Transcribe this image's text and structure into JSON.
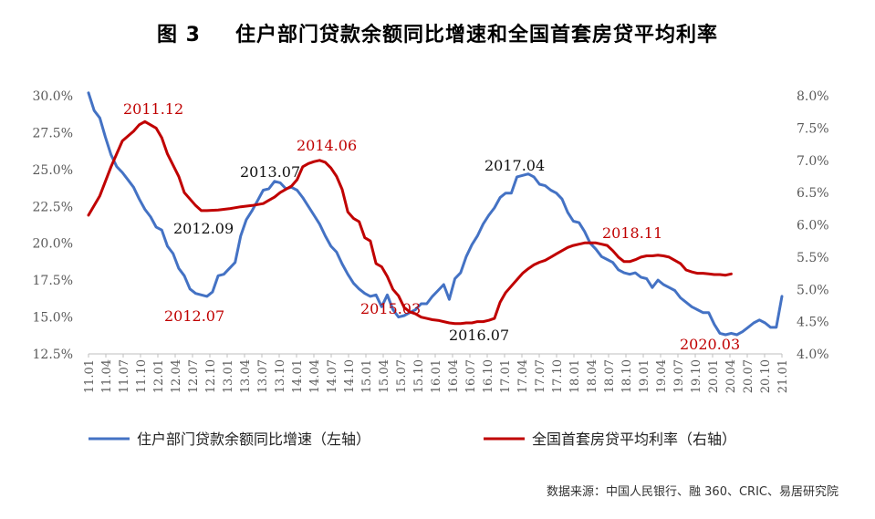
{
  "title": {
    "figure_no": "图 3",
    "text": "住户部门贷款余额同比增速和全国首套房贷平均利率"
  },
  "source": "数据来源：中国人民银行、融 360、CRIC、易居研究院",
  "chart_data": {
    "type": "line",
    "left_axis": {
      "range": [
        12.5,
        30.0
      ],
      "ticks": [
        "30.0%",
        "27.5%",
        "25.0%",
        "22.5%",
        "20.0%",
        "17.5%",
        "15.0%",
        "12.5%"
      ],
      "tick_values": [
        30.0,
        27.5,
        25.0,
        22.5,
        20.0,
        17.5,
        15.0,
        12.5
      ]
    },
    "right_axis": {
      "range": [
        4.0,
        8.0
      ],
      "ticks": [
        "8.0%",
        "7.5%",
        "7.0%",
        "6.5%",
        "6.0%",
        "5.5%",
        "5.0%",
        "4.5%",
        "4.0%"
      ],
      "tick_values": [
        8.0,
        7.5,
        7.0,
        6.5,
        6.0,
        5.5,
        5.0,
        4.5,
        4.0
      ]
    },
    "x_ticks": [
      "11.01",
      "11.04",
      "11.07",
      "11.10",
      "12.01",
      "12.04",
      "12.07",
      "12.10",
      "13.01",
      "13.04",
      "13.07",
      "13.10",
      "14.01",
      "14.04",
      "14.07",
      "14.10",
      "15.01",
      "15.04",
      "15.07",
      "15.10",
      "16.01",
      "16.04",
      "16.07",
      "16.10",
      "17.01",
      "17.04",
      "17.07",
      "17.10",
      "18.01",
      "18.04",
      "18.07",
      "18.10",
      "19.01",
      "19.04",
      "19.07",
      "19.10",
      "20.01",
      "20.04",
      "20.07",
      "20.10",
      "21.01"
    ],
    "x_range": [
      0,
      123
    ],
    "series": [
      {
        "name": "住户部门贷款余额同比增速（左轴）",
        "color": "#4472C4",
        "axis": "left",
        "points": [
          [
            0,
            30.2
          ],
          [
            1,
            29.0
          ],
          [
            2,
            28.5
          ],
          [
            3,
            27.2
          ],
          [
            4,
            26.0
          ],
          [
            5,
            25.2
          ],
          [
            6,
            24.8
          ],
          [
            7,
            24.3
          ],
          [
            8,
            23.8
          ],
          [
            9,
            23.0
          ],
          [
            10,
            22.3
          ],
          [
            11,
            21.8
          ],
          [
            12,
            21.1
          ],
          [
            13,
            20.9
          ],
          [
            14,
            19.8
          ],
          [
            15,
            19.3
          ],
          [
            16,
            18.3
          ],
          [
            17,
            17.8
          ],
          [
            18,
            16.9
          ],
          [
            19,
            16.6
          ],
          [
            20,
            16.5
          ],
          [
            21,
            16.4
          ],
          [
            22,
            16.7
          ],
          [
            23,
            17.8
          ],
          [
            24,
            17.9
          ],
          [
            25,
            18.3
          ],
          [
            26,
            18.7
          ],
          [
            27,
            20.5
          ],
          [
            28,
            21.6
          ],
          [
            29,
            22.2
          ],
          [
            30,
            22.9
          ],
          [
            31,
            23.6
          ],
          [
            32,
            23.7
          ],
          [
            33,
            24.2
          ],
          [
            34,
            24.1
          ],
          [
            35,
            23.7
          ],
          [
            36,
            23.8
          ],
          [
            37,
            23.6
          ],
          [
            38,
            23.1
          ],
          [
            39,
            22.5
          ],
          [
            40,
            21.9
          ],
          [
            41,
            21.3
          ],
          [
            42,
            20.5
          ],
          [
            43,
            19.8
          ],
          [
            44,
            19.4
          ],
          [
            45,
            18.6
          ],
          [
            46,
            17.9
          ],
          [
            47,
            17.3
          ],
          [
            48,
            16.9
          ],
          [
            49,
            16.6
          ],
          [
            50,
            16.4
          ],
          [
            51,
            16.5
          ],
          [
            52,
            15.7
          ],
          [
            53,
            16.5
          ],
          [
            54,
            15.5
          ],
          [
            55,
            15.0
          ],
          [
            56,
            15.1
          ],
          [
            57,
            15.3
          ],
          [
            58,
            15.5
          ],
          [
            59,
            15.9
          ],
          [
            60,
            15.9
          ],
          [
            61,
            16.4
          ],
          [
            62,
            16.8
          ],
          [
            63,
            17.2
          ],
          [
            64,
            16.2
          ],
          [
            65,
            17.6
          ],
          [
            66,
            18.0
          ],
          [
            67,
            19.1
          ],
          [
            68,
            19.9
          ],
          [
            69,
            20.5
          ],
          [
            70,
            21.3
          ],
          [
            71,
            21.9
          ],
          [
            72,
            22.4
          ],
          [
            73,
            23.1
          ],
          [
            74,
            23.4
          ],
          [
            75,
            23.4
          ],
          [
            76,
            24.5
          ],
          [
            77,
            24.6
          ],
          [
            78,
            24.7
          ],
          [
            79,
            24.5
          ],
          [
            80,
            24.0
          ],
          [
            81,
            23.9
          ],
          [
            82,
            23.6
          ],
          [
            83,
            23.4
          ],
          [
            84,
            23.0
          ],
          [
            85,
            22.1
          ],
          [
            86,
            21.5
          ],
          [
            87,
            21.4
          ],
          [
            88,
            20.8
          ],
          [
            89,
            20.0
          ],
          [
            90,
            19.6
          ],
          [
            91,
            19.1
          ],
          [
            92,
            18.9
          ],
          [
            93,
            18.7
          ],
          [
            94,
            18.2
          ],
          [
            95,
            18.0
          ],
          [
            96,
            17.9
          ],
          [
            97,
            18.0
          ],
          [
            98,
            17.7
          ],
          [
            99,
            17.6
          ],
          [
            100,
            17.0
          ],
          [
            101,
            17.5
          ],
          [
            102,
            17.2
          ],
          [
            103,
            17.0
          ],
          [
            104,
            16.8
          ],
          [
            105,
            16.3
          ],
          [
            106,
            16.0
          ],
          [
            107,
            15.7
          ],
          [
            108,
            15.5
          ],
          [
            109,
            15.3
          ],
          [
            110,
            15.3
          ],
          [
            111,
            14.5
          ],
          [
            112,
            13.9
          ],
          [
            113,
            13.8
          ],
          [
            114,
            13.9
          ],
          [
            115,
            13.8
          ],
          [
            116,
            14.0
          ],
          [
            117,
            14.3
          ],
          [
            118,
            14.6
          ],
          [
            119,
            14.8
          ],
          [
            120,
            14.6
          ],
          [
            121,
            14.3
          ],
          [
            122,
            14.3
          ],
          [
            123,
            16.4
          ]
        ]
      },
      {
        "name": "全国首套房贷平均利率（右轴）",
        "color": "#C00000",
        "axis": "right",
        "points": [
          [
            0,
            6.15
          ],
          [
            2,
            6.45
          ],
          [
            4,
            6.9
          ],
          [
            6,
            7.3
          ],
          [
            8,
            7.45
          ],
          [
            9,
            7.55
          ],
          [
            10,
            7.6
          ],
          [
            12,
            7.5
          ],
          [
            13,
            7.35
          ],
          [
            14,
            7.1
          ],
          [
            16,
            6.75
          ],
          [
            17,
            6.5
          ],
          [
            18,
            6.4
          ],
          [
            19,
            6.3
          ],
          [
            20,
            6.22
          ],
          [
            21,
            6.22
          ],
          [
            23,
            6.23
          ],
          [
            25,
            6.25
          ],
          [
            27,
            6.28
          ],
          [
            29,
            6.3
          ],
          [
            31,
            6.33
          ],
          [
            32,
            6.38
          ],
          [
            33,
            6.43
          ],
          [
            34,
            6.5
          ],
          [
            36,
            6.6
          ],
          [
            37,
            6.7
          ],
          [
            38,
            6.9
          ],
          [
            39,
            6.95
          ],
          [
            40,
            6.98
          ],
          [
            41,
            7.0
          ],
          [
            42,
            6.97
          ],
          [
            43,
            6.88
          ],
          [
            44,
            6.75
          ],
          [
            45,
            6.55
          ],
          [
            46,
            6.2
          ],
          [
            47,
            6.1
          ],
          [
            48,
            6.05
          ],
          [
            49,
            5.8
          ],
          [
            50,
            5.75
          ],
          [
            51,
            5.4
          ],
          [
            52,
            5.35
          ],
          [
            53,
            5.2
          ],
          [
            54,
            5.0
          ],
          [
            55,
            4.9
          ],
          [
            56,
            4.72
          ],
          [
            57,
            4.65
          ],
          [
            58,
            4.62
          ],
          [
            59,
            4.57
          ],
          [
            60,
            4.55
          ],
          [
            61,
            4.53
          ],
          [
            62,
            4.52
          ],
          [
            63,
            4.5
          ],
          [
            64,
            4.48
          ],
          [
            65,
            4.47
          ],
          [
            66,
            4.47
          ],
          [
            67,
            4.48
          ],
          [
            68,
            4.48
          ],
          [
            69,
            4.5
          ],
          [
            70,
            4.5
          ],
          [
            71,
            4.52
          ],
          [
            72,
            4.55
          ],
          [
            73,
            4.8
          ],
          [
            74,
            4.95
          ],
          [
            75,
            5.05
          ],
          [
            76,
            5.15
          ],
          [
            77,
            5.25
          ],
          [
            78,
            5.32
          ],
          [
            79,
            5.38
          ],
          [
            80,
            5.42
          ],
          [
            81,
            5.45
          ],
          [
            82,
            5.5
          ],
          [
            83,
            5.55
          ],
          [
            84,
            5.6
          ],
          [
            85,
            5.65
          ],
          [
            86,
            5.68
          ],
          [
            87,
            5.7
          ],
          [
            88,
            5.72
          ],
          [
            89,
            5.72
          ],
          [
            90,
            5.72
          ],
          [
            91,
            5.7
          ],
          [
            92,
            5.68
          ],
          [
            93,
            5.6
          ],
          [
            94,
            5.5
          ],
          [
            95,
            5.43
          ],
          [
            96,
            5.43
          ],
          [
            97,
            5.46
          ],
          [
            98,
            5.5
          ],
          [
            99,
            5.52
          ],
          [
            100,
            5.52
          ],
          [
            101,
            5.53
          ],
          [
            102,
            5.52
          ],
          [
            103,
            5.5
          ],
          [
            104,
            5.45
          ],
          [
            105,
            5.4
          ],
          [
            106,
            5.3
          ],
          [
            107,
            5.27
          ],
          [
            108,
            5.25
          ],
          [
            109,
            5.25
          ],
          [
            110,
            5.24
          ],
          [
            111,
            5.23
          ],
          [
            112,
            5.23
          ],
          [
            113,
            5.22
          ],
          [
            114,
            5.24
          ]
        ]
      }
    ],
    "annotations": [
      {
        "text": "2011.12",
        "color": "#C00000"
      },
      {
        "text": "2012.09",
        "color": "#111111"
      },
      {
        "text": "2012.07",
        "color": "#C00000"
      },
      {
        "text": "2013.07",
        "color": "#111111"
      },
      {
        "text": "2014.06",
        "color": "#C00000"
      },
      {
        "text": "2015.03",
        "color": "#C00000"
      },
      {
        "text": "2016.07",
        "color": "#111111"
      },
      {
        "text": "2017.04",
        "color": "#111111"
      },
      {
        "text": "2018.11",
        "color": "#C00000"
      },
      {
        "text": "2020.03",
        "color": "#C00000"
      }
    ],
    "legend": [
      {
        "label": "住户部门贷款余额同比增速（左轴）",
        "color": "#4472C4"
      },
      {
        "label": "全国首套房贷平均利率（右轴）",
        "color": "#C00000"
      }
    ],
    "legend_position": "bottom",
    "grid": false
  }
}
